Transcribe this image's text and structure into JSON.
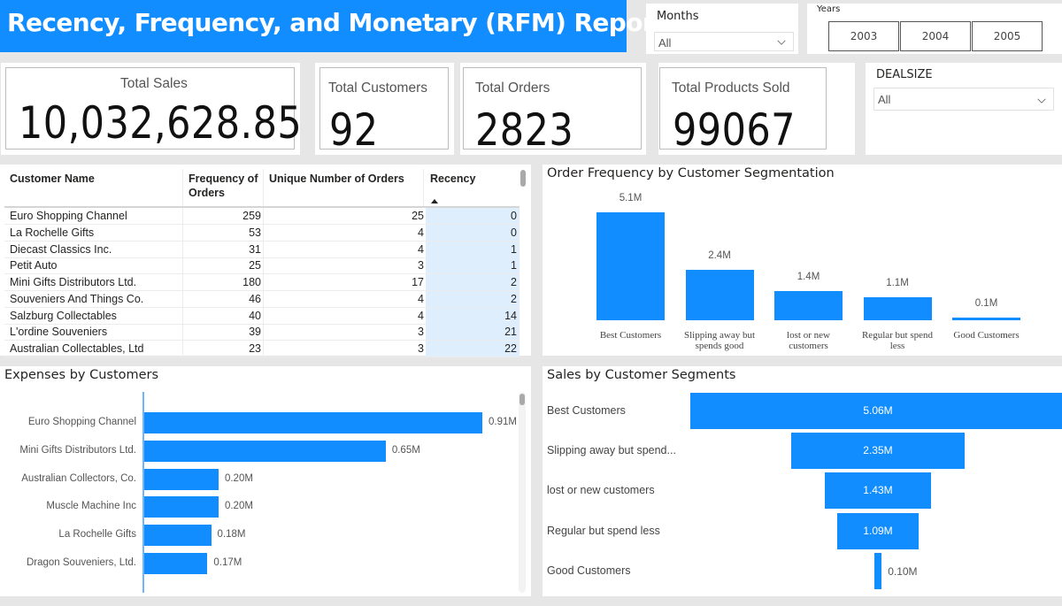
{
  "header": {
    "title": "Recency, Frequency, and Monetary (RFM) Report"
  },
  "filters": {
    "months": {
      "title": "Months",
      "selected": "All"
    },
    "years": {
      "title": "Years",
      "options": [
        "2003",
        "2004",
        "2005"
      ]
    },
    "dealsize": {
      "title": "DEALSIZE",
      "selected": "All"
    }
  },
  "kpis": {
    "total_sales": {
      "label": "Total Sales",
      "value": "10,032,628.85"
    },
    "total_customers": {
      "label": "Total Customers",
      "value": "92"
    },
    "total_orders": {
      "label": "Total Orders",
      "value": "2823"
    },
    "total_products": {
      "label": "Total Products Sold",
      "value": "99067"
    }
  },
  "customer_table": {
    "columns": [
      "Customer Name",
      "Frequency of Orders",
      "Unique Number of Orders",
      "Recency"
    ],
    "column_lines": {
      "freq_1": "Frequency of",
      "freq_2": "Orders"
    },
    "sort_column": "Recency",
    "sort_direction": "ascending",
    "rows": [
      {
        "name": "Euro Shopping Channel",
        "frequency": "259",
        "unique": "25",
        "recency": "0"
      },
      {
        "name": "La Rochelle Gifts",
        "frequency": "53",
        "unique": "4",
        "recency": "0"
      },
      {
        "name": "Diecast Classics Inc.",
        "frequency": "31",
        "unique": "4",
        "recency": "1"
      },
      {
        "name": "Petit Auto",
        "frequency": "25",
        "unique": "3",
        "recency": "1"
      },
      {
        "name": "Mini Gifts Distributors Ltd.",
        "frequency": "180",
        "unique": "17",
        "recency": "2"
      },
      {
        "name": "Souveniers And Things Co.",
        "frequency": "46",
        "unique": "4",
        "recency": "2"
      },
      {
        "name": "Salzburg Collectables",
        "frequency": "40",
        "unique": "4",
        "recency": "14"
      },
      {
        "name": "L'ordine Souveniers",
        "frequency": "39",
        "unique": "3",
        "recency": "21"
      },
      {
        "name": "Australian Collectables, Ltd",
        "frequency": "23",
        "unique": "3",
        "recency": "22"
      }
    ]
  },
  "colors": {
    "accent": "#118dff",
    "recency_highlight": "#deeefc",
    "background": "#e6e6e6"
  },
  "chart_data": [
    {
      "id": "order_frequency",
      "type": "bar",
      "title": "Order Frequency by Customer Segmentation",
      "categories": [
        "Best Customers",
        "Slipping away but spends good",
        "lost or new customers",
        "Regular but spend less",
        "Good Customers"
      ],
      "category_lines": [
        [
          "Best Customers"
        ],
        [
          "Slipping away but",
          "spends good"
        ],
        [
          "lost or new",
          "customers"
        ],
        [
          "Regular but spend",
          "less"
        ],
        [
          "Good Customers"
        ]
      ],
      "values": [
        5.1,
        2.4,
        1.4,
        1.1,
        0.1
      ],
      "data_labels": [
        "5.1M",
        "2.4M",
        "1.4M",
        "1.1M",
        "0.1M"
      ],
      "unit": "M",
      "xlabel": "",
      "ylabel": "",
      "grid": false
    },
    {
      "id": "expenses_by_customers",
      "type": "bar",
      "orientation": "horizontal",
      "title": "Expenses by Customers",
      "categories": [
        "Euro Shopping Channel",
        "Mini Gifts Distributors Ltd.",
        "Australian Collectors, Co.",
        "Muscle Machine Inc",
        "La Rochelle Gifts",
        "Dragon Souveniers, Ltd."
      ],
      "values": [
        0.91,
        0.65,
        0.2,
        0.2,
        0.18,
        0.17
      ],
      "data_labels": [
        "0.91M",
        "0.65M",
        "0.20M",
        "0.20M",
        "0.18M",
        "0.17M"
      ],
      "unit": "M",
      "grid": false
    },
    {
      "id": "sales_by_segments",
      "type": "funnel",
      "title": "Sales by Customer Segments",
      "categories": [
        "Best Customers",
        "Slipping away but spend...",
        "lost or new customers",
        "Regular but spend less",
        "Good Customers"
      ],
      "values": [
        5.06,
        2.35,
        1.43,
        1.09,
        0.1
      ],
      "data_labels": [
        "5.06M",
        "2.35M",
        "1.43M",
        "1.09M",
        "0.10M"
      ],
      "unit": "M"
    }
  ]
}
